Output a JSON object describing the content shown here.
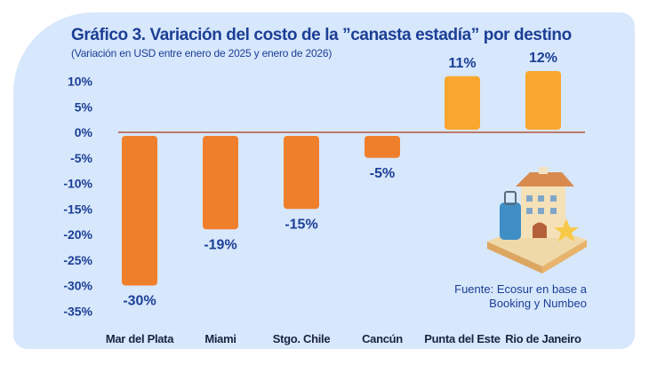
{
  "chart_data": {
    "type": "bar",
    "title": "Gráfico 3. Variación del costo de la ”canasta estadía” por destino",
    "subtitle": "(Variación en USD entre enero de 2025 y enero de 2026)",
    "categories": [
      "Mar del Plata",
      "Miami",
      "Stgo. Chile",
      "Cancún",
      "Punta del Este",
      "Rio de Janeiro"
    ],
    "values": [
      -30,
      -19,
      -15,
      -5,
      11,
      12
    ],
    "data_labels": [
      "-30%",
      "-19%",
      "-15%",
      "-5%",
      "11%",
      "12%"
    ],
    "yticks": [
      10,
      5,
      0,
      -5,
      -10,
      -15,
      -20,
      -25,
      -30,
      -35
    ],
    "ytick_labels": [
      "10%",
      "5%",
      "0%",
      "-5%",
      "-10%",
      "-15%",
      "-20%",
      "-25%",
      "-30%",
      "-35%"
    ],
    "ylim": [
      -35,
      12
    ],
    "xlabel": "",
    "ylabel": "",
    "grid": false,
    "colors": {
      "negative": "#f07f2c",
      "positive": "#f9a62f",
      "zero_line": "#b5553a",
      "text": "#1c3f95",
      "category_text": "#1a2340"
    },
    "source": "Fuente: Ecosur en base a Booking y Numbeo"
  },
  "decor": {
    "illustration": "hotel-with-suitcase-and-stars"
  }
}
